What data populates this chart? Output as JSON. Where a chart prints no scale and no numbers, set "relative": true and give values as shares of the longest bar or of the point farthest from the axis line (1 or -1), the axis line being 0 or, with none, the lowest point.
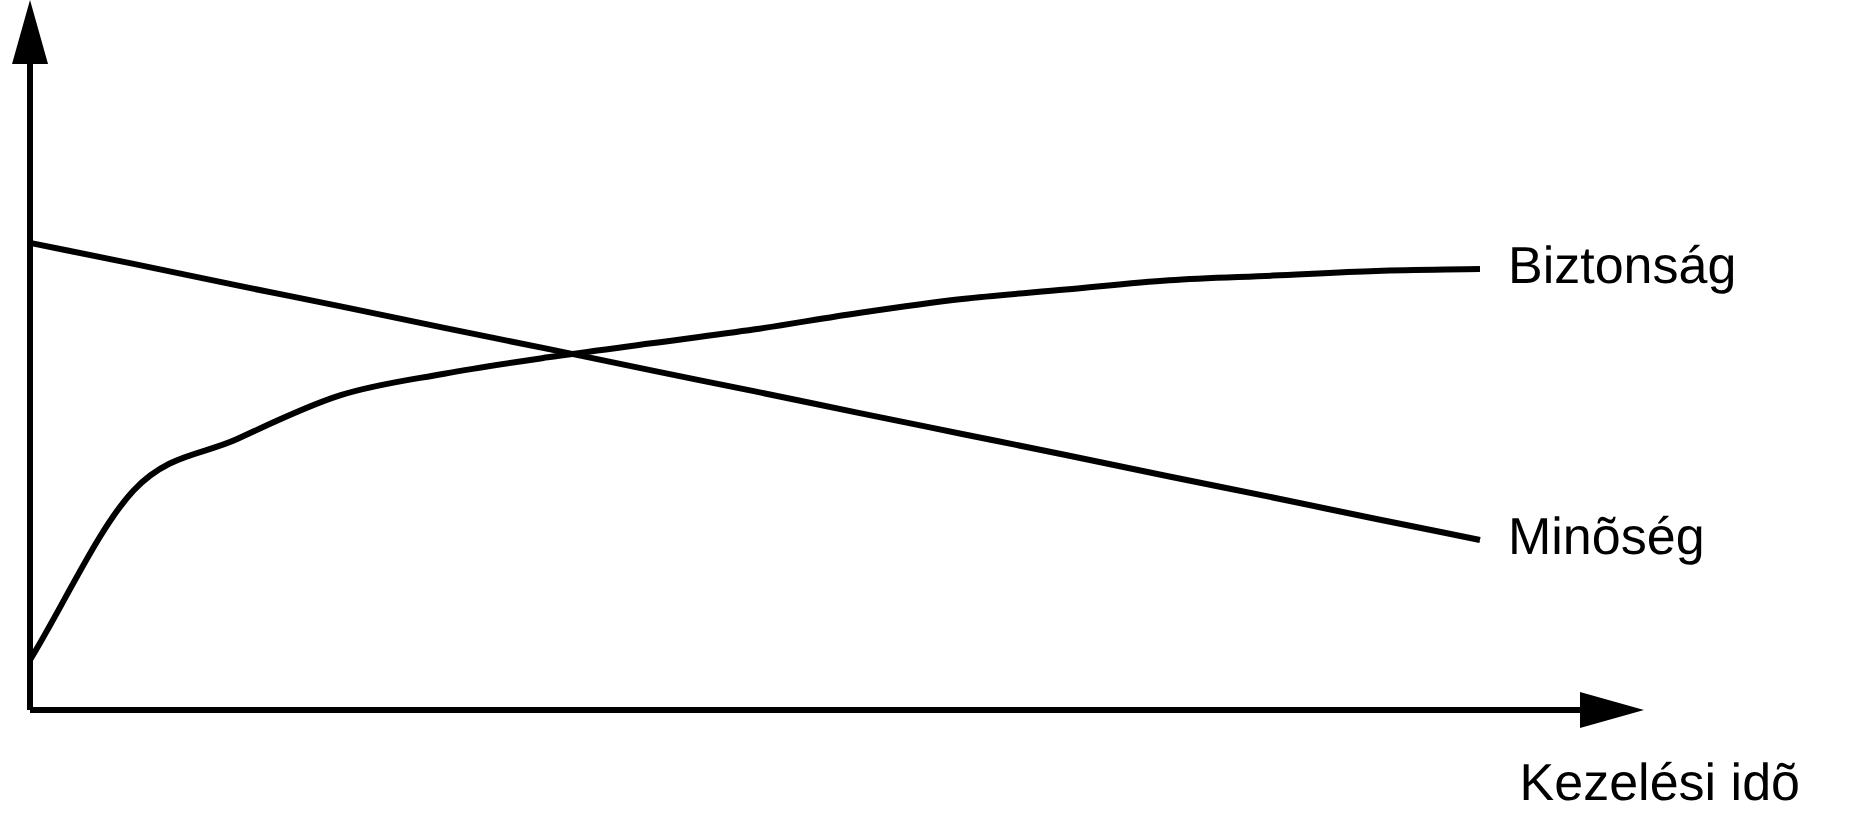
{
  "chart_data": {
    "type": "line",
    "relative": true,
    "xlabel": "Kezelési idõ",
    "categories": [
      null,
      null,
      null,
      null,
      null,
      null,
      null,
      null,
      null,
      null,
      null,
      null,
      null,
      null,
      null
    ],
    "legend": false,
    "grid": false,
    "marker": "none",
    "line_style": "solid",
    "series": [
      {
        "name": "Biztonság",
        "color": "#000000",
        "values": [
          0.107,
          0.47,
          0.58,
          0.674,
          0.72,
          0.755,
          0.785,
          0.815,
          0.85,
          0.88,
          0.9,
          0.92,
          0.93,
          0.94,
          0.944
        ]
      },
      {
        "name": "Minõség",
        "color": "#000000",
        "values": [
          1,
          0.955,
          0.909,
          0.864,
          0.818,
          0.773,
          0.727,
          0.682,
          0.636,
          0.591,
          0.546,
          0.5,
          0.455,
          0.409,
          0.364
        ]
      }
    ]
  }
}
